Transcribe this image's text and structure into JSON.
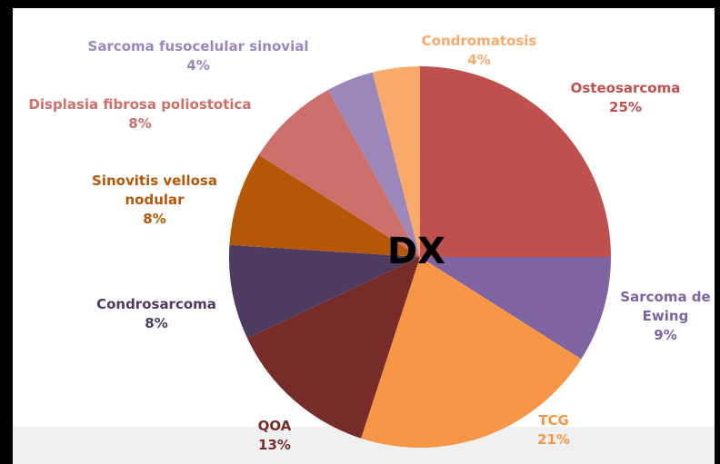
{
  "chart_data": {
    "type": "pie",
    "title": "DX",
    "categories": [
      "Osteosarcoma",
      "Sarcoma de Ewing",
      "TCG",
      "QOA",
      "Condrosarcoma",
      "Sinovitis vellosa nodular",
      "Displasia fibrosa poliostotica",
      "Sarcoma fusocelular sinovial",
      "Condromatosis"
    ],
    "values": [
      25,
      9,
      21,
      13,
      8,
      8,
      8,
      4,
      4
    ],
    "value_labels": [
      "25%",
      "9%",
      "21%",
      "13%",
      "8%",
      "8%",
      "8%",
      "4%",
      "4%"
    ],
    "colors": [
      "#c0504d",
      "#8064a2",
      "#f79646",
      "#772c2a",
      "#4d3b62",
      "#b65708",
      "#cd706c",
      "#9c87bb",
      "#f9a96a"
    ]
  }
}
